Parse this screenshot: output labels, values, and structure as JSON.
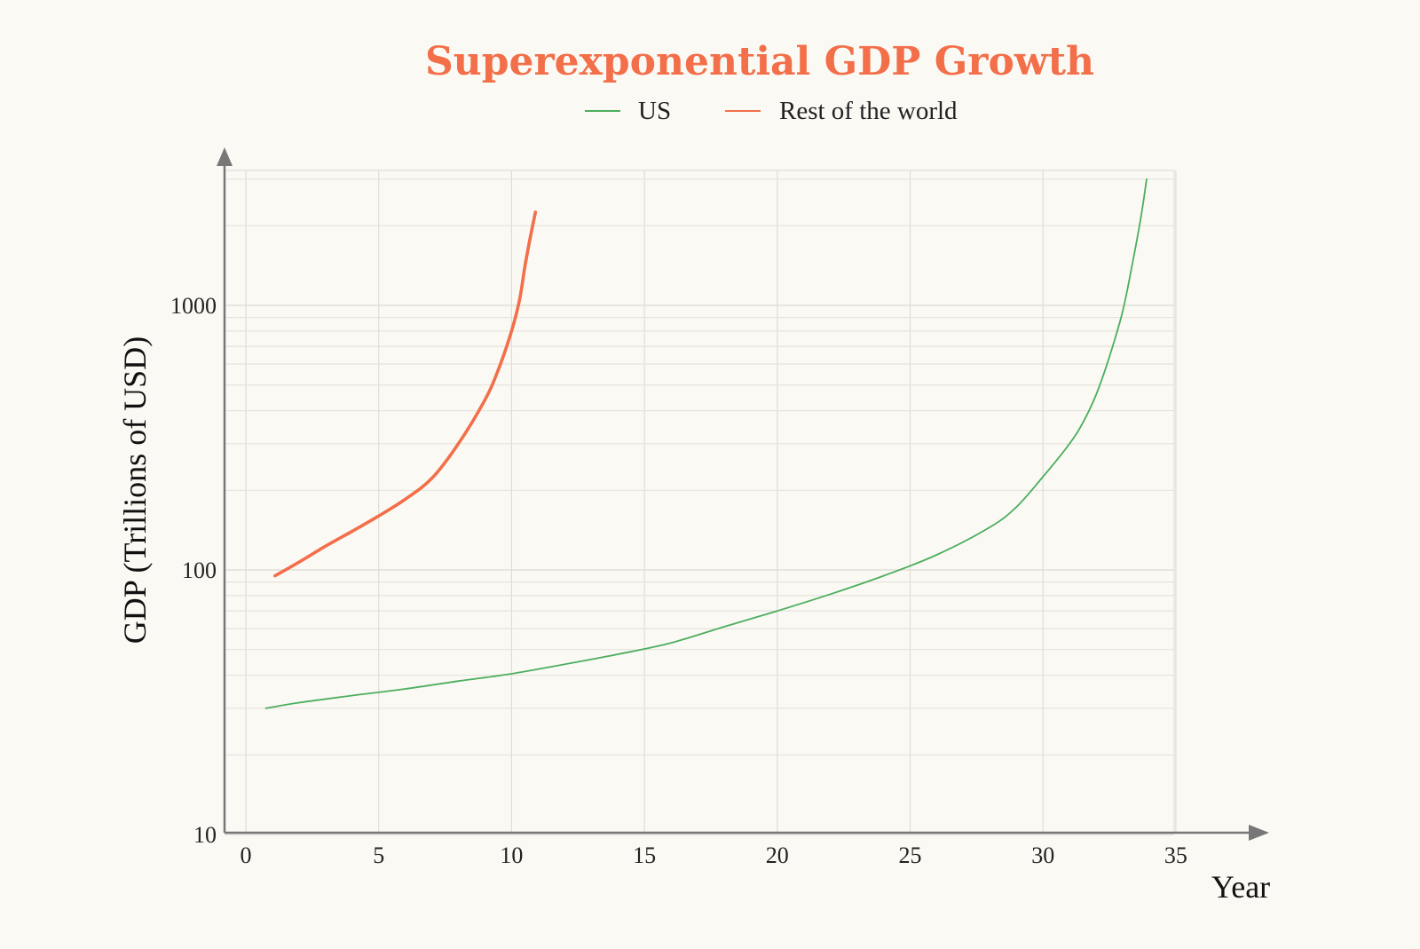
{
  "chart_data": {
    "type": "line",
    "title": "Superexponential GDP Growth",
    "xlabel": "Year",
    "ylabel": "GDP (Trillions of USD)",
    "yscale": "log",
    "xlim": [
      -0.8,
      35.3
    ],
    "ylim": [
      10,
      3000
    ],
    "x_ticks": [
      "0",
      "5",
      "10",
      "15",
      "20",
      "25",
      "30",
      "35"
    ],
    "y_ticks": [
      "10",
      "100",
      "1000"
    ],
    "grid": true,
    "legend_position": "top",
    "series": [
      {
        "name": "US",
        "color": "#4cae5e",
        "x": [
          0.75,
          2,
          4,
          6,
          8,
          10,
          12,
          14,
          16,
          18,
          20,
          22,
          24,
          26,
          28,
          29,
          30,
          31,
          31.5,
          32,
          32.5,
          33,
          33.4,
          33.7,
          33.9
        ],
        "y": [
          30,
          31.5,
          33.5,
          35.5,
          38,
          40.5,
          44,
          48,
          53,
          61,
          70,
          81,
          95,
          114,
          145,
          173,
          225,
          300,
          360,
          460,
          640,
          950,
          1500,
          2200,
          3000
        ]
      },
      {
        "name": "Rest of the world",
        "color": "#f26f4a",
        "x": [
          1.1,
          2,
          3,
          4,
          5,
          6,
          7,
          8,
          9,
          9.5,
          10,
          10.3,
          10.5,
          10.7,
          10.9
        ],
        "y": [
          95,
          107,
          123,
          140,
          160,
          185,
          222,
          300,
          440,
          570,
          800,
          1050,
          1400,
          1800,
          2250
        ]
      }
    ]
  }
}
